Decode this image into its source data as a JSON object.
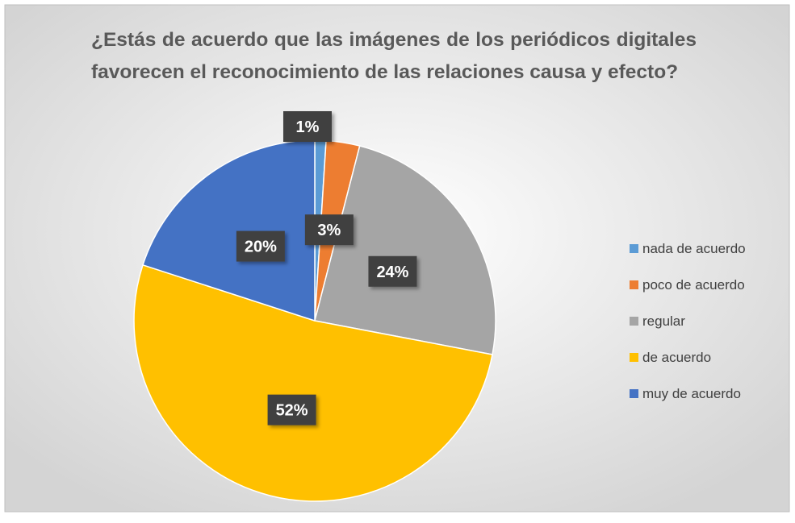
{
  "chart_data": {
    "type": "pie",
    "title": "¿Estás de acuerdo que las imágenes de los periódicos digitales favorecen el reconocimiento de las relaciones causa y efecto?",
    "categories": [
      "nada de acuerdo",
      "poco de acuerdo",
      "regular",
      "de acuerdo",
      "muy de acuerdo"
    ],
    "values": [
      1,
      3,
      24,
      52,
      20
    ],
    "value_labels": [
      "1%",
      "3%",
      "24%",
      "52%",
      "20%"
    ],
    "colors": [
      "#5b9bd5",
      "#ed7d31",
      "#a5a5a5",
      "#ffc000",
      "#4472c4"
    ],
    "legend": "right"
  }
}
